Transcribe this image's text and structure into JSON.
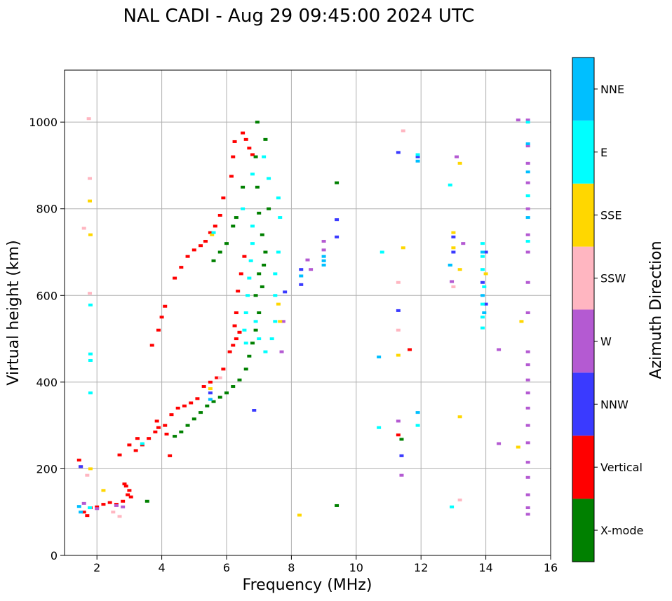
{
  "chart_data": {
    "type": "scatter",
    "title": "NAL CADI - Aug 29 09:45:00 2024 UTC",
    "xlabel": "Frequency (MHz)",
    "ylabel": "Virtual height (km)",
    "xlim": [
      1,
      16
    ],
    "ylim": [
      0,
      1120
    ],
    "xticks": [
      2,
      4,
      6,
      8,
      10,
      12,
      14,
      16
    ],
    "yticks": [
      0,
      200,
      400,
      600,
      800,
      1000
    ],
    "grid": true,
    "colorbar": {
      "label": "Azimuth Direction",
      "categories": [
        {
          "name": "X-mode",
          "color": "#008000"
        },
        {
          "name": "Vertical",
          "color": "#ff0000"
        },
        {
          "name": "NNW",
          "color": "#3a3aff"
        },
        {
          "name": "W",
          "color": "#b45ad2"
        },
        {
          "name": "SSW",
          "color": "#ffb6c1"
        },
        {
          "name": "SSE",
          "color": "#ffd700"
        },
        {
          "name": "E",
          "color": "#00ffff"
        },
        {
          "name": "NNE",
          "color": "#00bfff"
        }
      ]
    },
    "series": [
      {
        "name": "Vertical",
        "points": [
          [
            1.45,
            220
          ],
          [
            1.5,
            205
          ],
          [
            1.6,
            100
          ],
          [
            1.7,
            92
          ],
          [
            1.8,
            110
          ],
          [
            2.0,
            112
          ],
          [
            2.2,
            118
          ],
          [
            2.4,
            122
          ],
          [
            2.6,
            118
          ],
          [
            2.8,
            125
          ],
          [
            2.9,
            160
          ],
          [
            3.0,
            150
          ],
          [
            3.05,
            135
          ],
          [
            2.95,
            140
          ],
          [
            2.85,
            165
          ],
          [
            3.0,
            255
          ],
          [
            3.2,
            242
          ],
          [
            3.4,
            255
          ],
          [
            3.6,
            270
          ],
          [
            3.8,
            285
          ],
          [
            3.9,
            295
          ],
          [
            4.1,
            300
          ],
          [
            4.3,
            325
          ],
          [
            4.5,
            340
          ],
          [
            4.7,
            345
          ],
          [
            4.9,
            352
          ],
          [
            5.1,
            362
          ],
          [
            5.3,
            390
          ],
          [
            5.5,
            400
          ],
          [
            5.7,
            410
          ],
          [
            5.9,
            430
          ],
          [
            6.1,
            470
          ],
          [
            6.2,
            485
          ],
          [
            6.3,
            500
          ],
          [
            6.4,
            515
          ],
          [
            3.7,
            485
          ],
          [
            3.9,
            520
          ],
          [
            4.0,
            550
          ],
          [
            4.1,
            575
          ],
          [
            4.4,
            640
          ],
          [
            4.6,
            665
          ],
          [
            4.8,
            690
          ],
          [
            5.0,
            705
          ],
          [
            5.2,
            715
          ],
          [
            5.35,
            725
          ],
          [
            5.5,
            745
          ],
          [
            5.65,
            760
          ],
          [
            5.8,
            785
          ],
          [
            5.9,
            825
          ],
          [
            6.15,
            875
          ],
          [
            6.2,
            920
          ],
          [
            6.25,
            955
          ],
          [
            6.5,
            975
          ],
          [
            6.6,
            960
          ],
          [
            6.7,
            940
          ],
          [
            6.8,
            925
          ],
          [
            6.55,
            690
          ],
          [
            6.45,
            650
          ],
          [
            6.35,
            610
          ],
          [
            6.3,
            560
          ],
          [
            6.25,
            530
          ],
          [
            4.15,
            280
          ],
          [
            4.25,
            230
          ],
          [
            3.85,
            310
          ],
          [
            3.25,
            270
          ],
          [
            11.3,
            278
          ],
          [
            11.65,
            475
          ],
          [
            2.7,
            232
          ]
        ]
      },
      {
        "name": "X-mode",
        "points": [
          [
            4.4,
            275
          ],
          [
            4.6,
            285
          ],
          [
            4.8,
            300
          ],
          [
            5.0,
            315
          ],
          [
            5.2,
            330
          ],
          [
            5.4,
            345
          ],
          [
            5.6,
            355
          ],
          [
            5.8,
            365
          ],
          [
            6.0,
            375
          ],
          [
            6.2,
            390
          ],
          [
            6.4,
            405
          ],
          [
            6.6,
            430
          ],
          [
            6.7,
            460
          ],
          [
            6.8,
            490
          ],
          [
            6.9,
            520
          ],
          [
            7.0,
            560
          ],
          [
            7.1,
            620
          ],
          [
            7.15,
            670
          ],
          [
            7.2,
            700
          ],
          [
            7.1,
            740
          ],
          [
            7.0,
            790
          ],
          [
            6.95,
            850
          ],
          [
            6.9,
            920
          ],
          [
            6.95,
            1000
          ],
          [
            7.2,
            960
          ],
          [
            7.3,
            800
          ],
          [
            6.9,
            600
          ],
          [
            7.0,
            650
          ],
          [
            5.6,
            680
          ],
          [
            5.8,
            700
          ],
          [
            6.0,
            720
          ],
          [
            6.2,
            760
          ],
          [
            9.4,
            860
          ],
          [
            9.4,
            115
          ],
          [
            11.4,
            268
          ],
          [
            3.55,
            125
          ],
          [
            6.5,
            850
          ],
          [
            6.3,
            780
          ]
        ]
      },
      {
        "name": "NNW",
        "points": [
          [
            1.5,
            205
          ],
          [
            5.5,
            375
          ],
          [
            8.3,
            660
          ],
          [
            8.3,
            625
          ],
          [
            9.4,
            775
          ],
          [
            9.4,
            735
          ],
          [
            11.3,
            930
          ],
          [
            11.3,
            565
          ],
          [
            11.4,
            230
          ],
          [
            11.9,
            920
          ],
          [
            13.0,
            735
          ],
          [
            13.0,
            700
          ],
          [
            14.0,
            700
          ],
          [
            13.9,
            630
          ],
          [
            14.0,
            580
          ],
          [
            7.8,
            608
          ],
          [
            6.85,
            335
          ]
        ]
      },
      {
        "name": "W",
        "points": [
          [
            1.6,
            120
          ],
          [
            2.0,
            108
          ],
          [
            2.6,
            115
          ],
          [
            2.8,
            112
          ],
          [
            8.5,
            682
          ],
          [
            8.6,
            660
          ],
          [
            9.0,
            705
          ],
          [
            9.0,
            725
          ],
          [
            11.3,
            310
          ],
          [
            11.4,
            185
          ],
          [
            12.95,
            632
          ],
          [
            13.3,
            720
          ],
          [
            13.1,
            920
          ],
          [
            14.4,
            475
          ],
          [
            14.4,
            258
          ],
          [
            15.0,
            1005
          ],
          [
            15.3,
            1005
          ],
          [
            15.3,
            945
          ],
          [
            15.3,
            905
          ],
          [
            15.3,
            860
          ],
          [
            15.3,
            800
          ],
          [
            15.3,
            740
          ],
          [
            15.3,
            700
          ],
          [
            15.3,
            630
          ],
          [
            15.3,
            560
          ],
          [
            15.3,
            470
          ],
          [
            15.3,
            440
          ],
          [
            15.3,
            405
          ],
          [
            15.3,
            375
          ],
          [
            15.3,
            340
          ],
          [
            15.3,
            300
          ],
          [
            15.3,
            260
          ],
          [
            15.3,
            215
          ],
          [
            15.3,
            180
          ],
          [
            15.3,
            140
          ],
          [
            15.3,
            110
          ],
          [
            15.3,
            95
          ],
          [
            7.75,
            540
          ],
          [
            7.7,
            470
          ]
        ]
      },
      {
        "name": "SSW",
        "points": [
          [
            1.75,
            1008
          ],
          [
            1.78,
            870
          ],
          [
            1.6,
            755
          ],
          [
            1.78,
            605
          ],
          [
            2.5,
            100
          ],
          [
            2.7,
            90
          ],
          [
            1.7,
            185
          ],
          [
            11.45,
            980
          ],
          [
            11.3,
            630
          ],
          [
            11.3,
            520
          ],
          [
            13.2,
            128
          ],
          [
            13.0,
            620
          ],
          [
            5.8,
            410
          ]
        ]
      },
      {
        "name": "SSE",
        "points": [
          [
            1.78,
            818
          ],
          [
            1.8,
            740
          ],
          [
            1.8,
            200
          ],
          [
            2.2,
            150
          ],
          [
            8.25,
            93
          ],
          [
            11.45,
            710
          ],
          [
            11.3,
            462
          ],
          [
            13.0,
            745
          ],
          [
            13.0,
            710
          ],
          [
            13.2,
            905
          ],
          [
            13.2,
            660
          ],
          [
            13.2,
            320
          ],
          [
            14.0,
            650
          ],
          [
            15.1,
            540
          ],
          [
            15.0,
            250
          ],
          [
            7.6,
            580
          ],
          [
            7.65,
            540
          ],
          [
            5.55,
            740
          ],
          [
            5.5,
            385
          ]
        ]
      },
      {
        "name": "E",
        "points": [
          [
            1.8,
            578
          ],
          [
            1.8,
            465
          ],
          [
            1.8,
            450
          ],
          [
            1.8,
            375
          ],
          [
            1.78,
            110
          ],
          [
            3.4,
            258
          ],
          [
            6.55,
            520
          ],
          [
            6.6,
            560
          ],
          [
            6.65,
            600
          ],
          [
            6.7,
            640
          ],
          [
            6.75,
            680
          ],
          [
            6.8,
            720
          ],
          [
            6.8,
            760
          ],
          [
            6.8,
            880
          ],
          [
            6.9,
            540
          ],
          [
            7.0,
            500
          ],
          [
            7.2,
            470
          ],
          [
            7.4,
            500
          ],
          [
            7.5,
            540
          ],
          [
            7.5,
            600
          ],
          [
            7.5,
            650
          ],
          [
            7.6,
            700
          ],
          [
            7.65,
            780
          ],
          [
            7.6,
            825
          ],
          [
            7.3,
            870
          ],
          [
            7.15,
            920
          ],
          [
            6.6,
            490
          ],
          [
            6.5,
            800
          ],
          [
            10.8,
            700
          ],
          [
            10.7,
            295
          ],
          [
            11.9,
            300
          ],
          [
            11.9,
            925
          ],
          [
            12.9,
            855
          ],
          [
            12.9,
            670
          ],
          [
            12.95,
            112
          ],
          [
            13.9,
            720
          ],
          [
            13.9,
            690
          ],
          [
            13.9,
            660
          ],
          [
            13.95,
            620
          ],
          [
            13.9,
            580
          ],
          [
            13.9,
            550
          ],
          [
            13.9,
            525
          ],
          [
            15.3,
            1000
          ],
          [
            15.3,
            830
          ],
          [
            15.3,
            725
          ],
          [
            5.6,
            745
          ]
        ]
      },
      {
        "name": "NNE",
        "points": [
          [
            1.5,
            100
          ],
          [
            1.45,
            113
          ],
          [
            5.5,
            360
          ],
          [
            8.3,
            645
          ],
          [
            9.0,
            690
          ],
          [
            9.0,
            680
          ],
          [
            9.0,
            670
          ],
          [
            10.7,
            458
          ],
          [
            11.9,
            910
          ],
          [
            11.9,
            330
          ],
          [
            12.9,
            670
          ],
          [
            13.9,
            700
          ],
          [
            13.9,
            600
          ],
          [
            13.95,
            560
          ],
          [
            15.3,
            950
          ],
          [
            15.3,
            885
          ],
          [
            15.3,
            780
          ]
        ]
      }
    ]
  }
}
